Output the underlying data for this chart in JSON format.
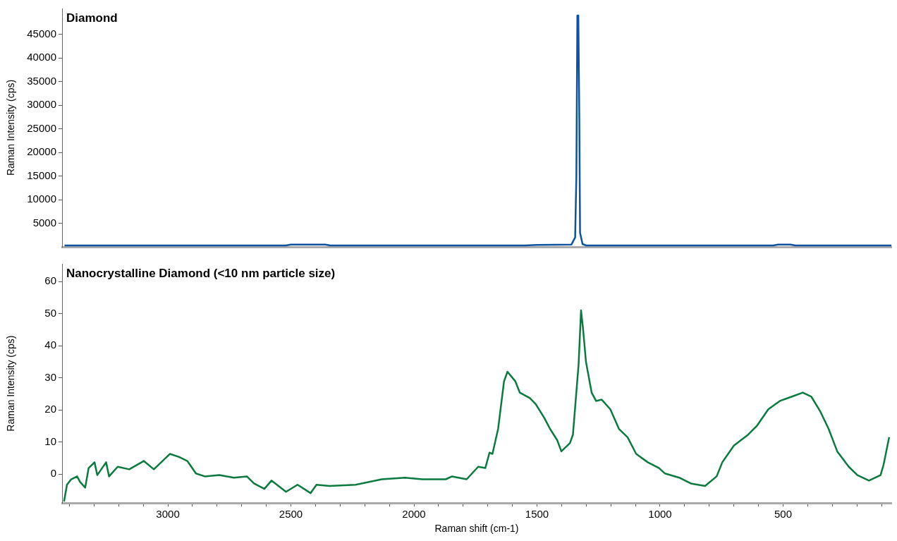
{
  "chart_data": [
    {
      "type": "line",
      "title": "Diamond",
      "ylabel": "Raman Intensity (cps)",
      "xlim": [
        3430,
        60
      ],
      "ylim": [
        0,
        50500
      ],
      "yticks": [
        5000,
        10000,
        15000,
        20000,
        25000,
        30000,
        35000,
        40000,
        45000
      ],
      "tick_labels": "y",
      "marker": "none",
      "series": [
        {
          "color": "#0f52a0",
          "x": [
            3420,
            2520,
            2500,
            2360,
            2340,
            1550,
            1500,
            1360,
            1345,
            1340,
            1336,
            1332,
            1328,
            1325,
            1315,
            1300,
            540,
            520,
            470,
            450,
            60
          ],
          "values": [
            300,
            300,
            500,
            500,
            300,
            300,
            400,
            500,
            2000,
            15000,
            49000,
            49000,
            27000,
            3000,
            600,
            300,
            300,
            500,
            500,
            300,
            300
          ]
        }
      ]
    },
    {
      "type": "line",
      "title": "Nanocrystalline Diamond (<10 nm particle size)",
      "xlabel": "Raman shift (cm-1)",
      "ylabel": "Raman Intensity (cps)",
      "xlim": [
        3430,
        60
      ],
      "ylim": [
        -9,
        65.5
      ],
      "yticks": [
        0,
        10,
        20,
        30,
        40,
        50,
        60
      ],
      "marker": "none",
      "xticks": [
        {
          "value": 3400,
          "label": null
        },
        {
          "value": 3300,
          "label": null
        },
        {
          "value": 3200,
          "label": null
        },
        {
          "value": 3100,
          "label": null
        },
        3000,
        {
          "value": 2900,
          "label": null
        },
        {
          "value": 2800,
          "label": null
        },
        {
          "value": 2700,
          "label": null
        },
        {
          "value": 2600,
          "label": null
        },
        2500,
        {
          "value": 2400,
          "label": null
        },
        {
          "value": 2300,
          "label": null
        },
        {
          "value": 2200,
          "label": null
        },
        {
          "value": 2100,
          "label": null
        },
        2000,
        {
          "value": 1900,
          "label": null
        },
        {
          "value": 1800,
          "label": null
        },
        {
          "value": 1700,
          "label": null
        },
        {
          "value": 1600,
          "label": null
        },
        1500,
        {
          "value": 1400,
          "label": null
        },
        {
          "value": 1300,
          "label": null
        },
        {
          "value": 1200,
          "label": null
        },
        {
          "value": 1100,
          "label": null
        },
        1000,
        {
          "value": 900,
          "label": null
        },
        {
          "value": 800,
          "label": null
        },
        {
          "value": 700,
          "label": null
        },
        {
          "value": 600,
          "label": null
        },
        500,
        {
          "value": 400,
          "label": null
        },
        {
          "value": 300,
          "label": null
        },
        {
          "value": 200,
          "label": null
        },
        {
          "value": 100,
          "label": null
        }
      ],
      "series": [
        {
          "color": "#0b7a3e",
          "x": [
            3422,
            3410,
            3393,
            3369,
            3357,
            3336,
            3322,
            3298,
            3287,
            3251,
            3239,
            3204,
            3157,
            3098,
            3057,
            2992,
            2956,
            2921,
            2886,
            2850,
            2791,
            2732,
            2679,
            2650,
            2608,
            2579,
            2520,
            2473,
            2420,
            2396,
            2343,
            2237,
            2131,
            2037,
            1966,
            1871,
            1845,
            1786,
            1739,
            1710,
            1693,
            1681,
            1658,
            1634,
            1620,
            1588,
            1570,
            1529,
            1506,
            1471,
            1447,
            1418,
            1401,
            1366,
            1354,
            1331,
            1321,
            1313,
            1301,
            1278,
            1260,
            1237,
            1202,
            1167,
            1132,
            1097,
            1050,
            1004,
            980,
            922,
            875,
            817,
            770,
            747,
            700,
            642,
            607,
            560,
            513,
            466,
            420,
            385,
            350,
            315,
            280,
            233,
            198,
            151,
            104,
            92,
            69
          ],
          "values": [
            -8.5,
            -3.3,
            -1.6,
            -0.7,
            -2.4,
            -4.2,
            1.9,
            3.7,
            -0.3,
            3.7,
            -0.7,
            2.3,
            1.5,
            4.1,
            1.5,
            6.3,
            5.4,
            4.1,
            0.2,
            -0.7,
            -0.3,
            -1.1,
            -0.7,
            -2.9,
            -4.6,
            -2,
            -5.5,
            -3.3,
            -5.9,
            -3.3,
            -3.7,
            -3.3,
            -1.6,
            -1.1,
            -1.6,
            -1.6,
            -0.7,
            -1.6,
            2.3,
            1.9,
            6.7,
            6.3,
            14.1,
            28.9,
            31.9,
            28.9,
            25.4,
            23.7,
            21.9,
            17.6,
            14.1,
            10.6,
            7.1,
            9.7,
            12.3,
            34.1,
            51,
            45.4,
            35,
            25.4,
            22.8,
            23.2,
            20.2,
            14.1,
            11.5,
            6.3,
            3.7,
            1.9,
            0.2,
            -1.1,
            -2.9,
            -3.7,
            -0.7,
            3.7,
            8.9,
            12.3,
            15,
            20.2,
            22.8,
            24.1,
            25.4,
            24.1,
            19.7,
            14.1,
            7.1,
            2.3,
            -0.3,
            -2,
            -0.3,
            2.8,
            11.5
          ]
        }
      ]
    }
  ]
}
